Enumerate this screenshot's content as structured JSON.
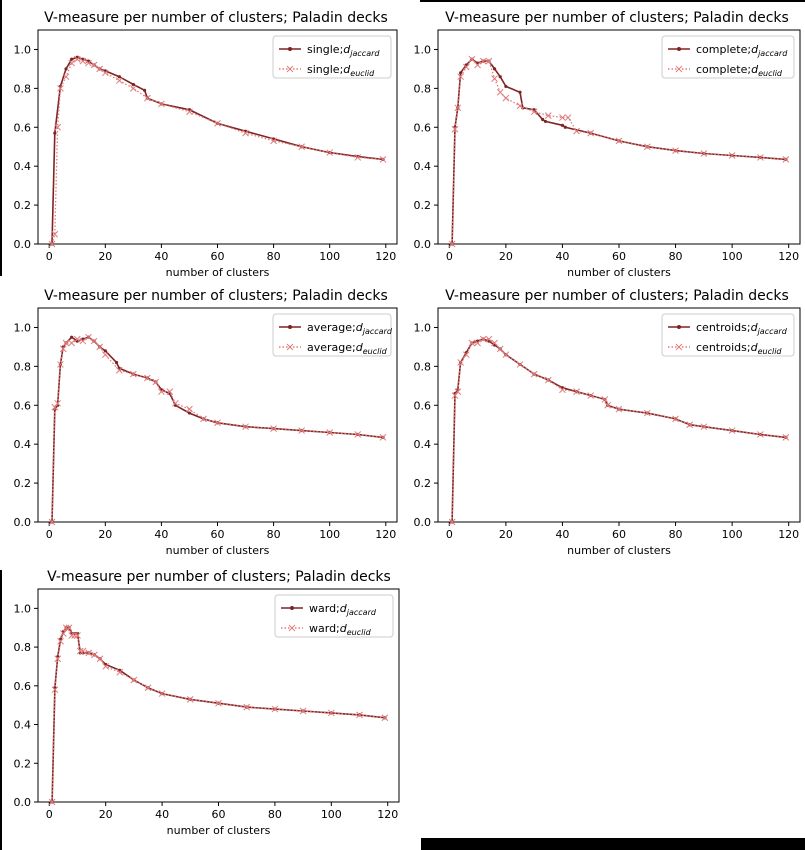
{
  "colors": {
    "jaccard": "#7f2424",
    "euclid": "#e07b7b",
    "axis": "#000000",
    "frame_bar": "#000000"
  },
  "chart_data": [
    {
      "type": "line",
      "title": "V-measure per number of clusters; Paladin decks",
      "xlabel": "number of clusters",
      "ylabel": "",
      "xlim": [
        -4,
        124
      ],
      "ylim": [
        0.0,
        1.1
      ],
      "xticks": [
        0,
        20,
        40,
        60,
        80,
        100,
        120
      ],
      "yticks": [
        0.0,
        0.2,
        0.4,
        0.6,
        0.8,
        1.0
      ],
      "legend_position": "top-right",
      "series": [
        {
          "name": "single",
          "sub": "jaccard",
          "style": "solid-dot",
          "x": [
            1,
            2,
            4,
            6,
            8,
            10,
            12,
            14,
            16,
            18,
            20,
            25,
            30,
            34,
            35,
            40,
            50,
            60,
            70,
            80,
            90,
            100,
            110,
            119
          ],
          "y": [
            0.0,
            0.57,
            0.81,
            0.9,
            0.95,
            0.96,
            0.95,
            0.94,
            0.92,
            0.9,
            0.89,
            0.86,
            0.82,
            0.79,
            0.75,
            0.72,
            0.69,
            0.62,
            0.58,
            0.54,
            0.5,
            0.47,
            0.45,
            0.435
          ]
        },
        {
          "name": "single",
          "sub": "euclid",
          "style": "dotted-x",
          "x": [
            1,
            2,
            3,
            4,
            6,
            8,
            10,
            12,
            14,
            16,
            18,
            20,
            25,
            30,
            35,
            40,
            50,
            60,
            70,
            80,
            90,
            100,
            110,
            119
          ],
          "y": [
            0.0,
            0.05,
            0.6,
            0.8,
            0.86,
            0.93,
            0.95,
            0.94,
            0.93,
            0.92,
            0.9,
            0.88,
            0.84,
            0.8,
            0.75,
            0.72,
            0.68,
            0.62,
            0.57,
            0.53,
            0.5,
            0.47,
            0.445,
            0.435
          ]
        }
      ]
    },
    {
      "type": "line",
      "title": "V-measure per number of clusters; Paladin decks",
      "xlabel": "number of clusters",
      "ylabel": "",
      "xlim": [
        -4,
        124
      ],
      "ylim": [
        0.0,
        1.1
      ],
      "xticks": [
        0,
        20,
        40,
        60,
        80,
        100,
        120
      ],
      "yticks": [
        0.0,
        0.2,
        0.4,
        0.6,
        0.8,
        1.0
      ],
      "legend_position": "top-right",
      "series": [
        {
          "name": "complete",
          "sub": "jaccard",
          "style": "solid-dot",
          "x": [
            1,
            2,
            3,
            4,
            6,
            8,
            10,
            12,
            14,
            16,
            18,
            20,
            25,
            26,
            30,
            33,
            34,
            40,
            41,
            50,
            60,
            70,
            80,
            90,
            100,
            110,
            119
          ],
          "y": [
            0.0,
            0.6,
            0.7,
            0.88,
            0.92,
            0.95,
            0.93,
            0.94,
            0.94,
            0.9,
            0.86,
            0.81,
            0.78,
            0.7,
            0.69,
            0.64,
            0.63,
            0.61,
            0.6,
            0.57,
            0.53,
            0.5,
            0.48,
            0.465,
            0.455,
            0.445,
            0.435
          ]
        },
        {
          "name": "complete",
          "sub": "euclid",
          "style": "dotted-x",
          "x": [
            1,
            2,
            3,
            4,
            6,
            8,
            10,
            12,
            14,
            16,
            18,
            20,
            25,
            30,
            35,
            40,
            42,
            45,
            50,
            60,
            70,
            80,
            90,
            100,
            110,
            119
          ],
          "y": [
            0.0,
            0.59,
            0.7,
            0.86,
            0.91,
            0.95,
            0.92,
            0.94,
            0.94,
            0.85,
            0.78,
            0.75,
            0.71,
            0.68,
            0.66,
            0.65,
            0.65,
            0.58,
            0.57,
            0.53,
            0.5,
            0.48,
            0.465,
            0.455,
            0.445,
            0.435
          ]
        }
      ]
    },
    {
      "type": "line",
      "title": "V-measure per number of clusters; Paladin decks",
      "xlabel": "number of clusters",
      "ylabel": "",
      "xlim": [
        -4,
        124
      ],
      "ylim": [
        0.0,
        1.1
      ],
      "xticks": [
        0,
        20,
        40,
        60,
        80,
        100,
        120
      ],
      "yticks": [
        0.0,
        0.2,
        0.4,
        0.6,
        0.8,
        1.0
      ],
      "legend_position": "top-right",
      "series": [
        {
          "name": "average",
          "sub": "jaccard",
          "style": "solid-dot",
          "x": [
            1,
            2,
            3,
            4,
            5,
            6,
            8,
            10,
            12,
            14,
            16,
            18,
            20,
            24,
            25,
            30,
            35,
            38,
            40,
            43,
            45,
            50,
            55,
            60,
            70,
            80,
            90,
            100,
            110,
            119
          ],
          "y": [
            0.0,
            0.58,
            0.6,
            0.81,
            0.9,
            0.92,
            0.95,
            0.93,
            0.94,
            0.95,
            0.93,
            0.9,
            0.88,
            0.82,
            0.79,
            0.76,
            0.74,
            0.72,
            0.68,
            0.66,
            0.6,
            0.56,
            0.53,
            0.51,
            0.49,
            0.48,
            0.47,
            0.46,
            0.45,
            0.435
          ]
        },
        {
          "name": "average",
          "sub": "euclid",
          "style": "dotted-x",
          "x": [
            1,
            2,
            3,
            4,
            5,
            6,
            8,
            10,
            12,
            14,
            16,
            18,
            20,
            25,
            30,
            35,
            38,
            40,
            43,
            45,
            50,
            55,
            60,
            70,
            80,
            90,
            100,
            110,
            119
          ],
          "y": [
            0.0,
            0.59,
            0.61,
            0.81,
            0.89,
            0.92,
            0.92,
            0.94,
            0.93,
            0.95,
            0.93,
            0.9,
            0.86,
            0.78,
            0.76,
            0.74,
            0.72,
            0.67,
            0.67,
            0.61,
            0.58,
            0.53,
            0.51,
            0.49,
            0.48,
            0.47,
            0.46,
            0.45,
            0.435
          ]
        }
      ]
    },
    {
      "type": "line",
      "title": "V-measure per number of clusters; Paladin decks",
      "xlabel": "number of clusters",
      "ylabel": "",
      "xlim": [
        -4,
        124
      ],
      "ylim": [
        0.0,
        1.1
      ],
      "xticks": [
        0,
        20,
        40,
        60,
        80,
        100,
        120
      ],
      "yticks": [
        0.0,
        0.2,
        0.4,
        0.6,
        0.8,
        1.0
      ],
      "legend_position": "top-right",
      "series": [
        {
          "name": "centroids",
          "sub": "jaccard",
          "style": "solid-dot",
          "x": [
            1,
            2,
            3,
            4,
            6,
            8,
            10,
            12,
            14,
            16,
            18,
            20,
            25,
            30,
            35,
            40,
            45,
            50,
            55,
            56,
            60,
            70,
            80,
            85,
            90,
            100,
            110,
            119
          ],
          "y": [
            0.0,
            0.66,
            0.68,
            0.82,
            0.87,
            0.92,
            0.93,
            0.94,
            0.93,
            0.91,
            0.89,
            0.86,
            0.81,
            0.76,
            0.73,
            0.69,
            0.67,
            0.65,
            0.63,
            0.6,
            0.58,
            0.56,
            0.53,
            0.5,
            0.49,
            0.47,
            0.45,
            0.435
          ]
        },
        {
          "name": "centroids",
          "sub": "euclid",
          "style": "dotted-x",
          "x": [
            1,
            2,
            3,
            4,
            6,
            8,
            10,
            12,
            14,
            16,
            18,
            20,
            25,
            30,
            35,
            40,
            45,
            50,
            55,
            56,
            60,
            70,
            80,
            85,
            90,
            100,
            110,
            119
          ],
          "y": [
            0.0,
            0.65,
            0.67,
            0.82,
            0.86,
            0.92,
            0.92,
            0.94,
            0.94,
            0.92,
            0.89,
            0.86,
            0.81,
            0.76,
            0.73,
            0.68,
            0.67,
            0.65,
            0.63,
            0.6,
            0.58,
            0.56,
            0.53,
            0.5,
            0.49,
            0.47,
            0.45,
            0.435
          ]
        }
      ]
    },
    {
      "type": "line",
      "title": "V-measure per number of clusters; Paladin decks",
      "xlabel": "number of clusters",
      "ylabel": "",
      "xlim": [
        -4,
        124
      ],
      "ylim": [
        0.0,
        1.1
      ],
      "xticks": [
        0,
        20,
        40,
        60,
        80,
        100,
        120
      ],
      "yticks": [
        0.0,
        0.2,
        0.4,
        0.6,
        0.8,
        1.0
      ],
      "legend_position": "top-right",
      "series": [
        {
          "name": "ward",
          "sub": "jaccard",
          "style": "solid-dot",
          "x": [
            1,
            2,
            3,
            4,
            5,
            6,
            7,
            8,
            9,
            10,
            11,
            12,
            14,
            16,
            18,
            20,
            25,
            30,
            35,
            40,
            50,
            60,
            70,
            80,
            90,
            100,
            110,
            119
          ],
          "y": [
            0.0,
            0.59,
            0.75,
            0.84,
            0.88,
            0.9,
            0.9,
            0.87,
            0.87,
            0.87,
            0.77,
            0.77,
            0.77,
            0.76,
            0.74,
            0.71,
            0.68,
            0.63,
            0.59,
            0.56,
            0.53,
            0.51,
            0.49,
            0.48,
            0.47,
            0.46,
            0.45,
            0.435
          ]
        },
        {
          "name": "ward",
          "sub": "euclid",
          "style": "dotted-x",
          "x": [
            1,
            2,
            3,
            4,
            5,
            6,
            7,
            8,
            9,
            10,
            11,
            12,
            14,
            16,
            18,
            20,
            25,
            30,
            35,
            40,
            50,
            60,
            70,
            80,
            90,
            100,
            110,
            119
          ],
          "y": [
            0.0,
            0.58,
            0.74,
            0.83,
            0.87,
            0.9,
            0.9,
            0.86,
            0.86,
            0.86,
            0.78,
            0.78,
            0.77,
            0.76,
            0.74,
            0.7,
            0.67,
            0.63,
            0.59,
            0.56,
            0.53,
            0.51,
            0.49,
            0.48,
            0.47,
            0.46,
            0.45,
            0.435
          ]
        }
      ]
    }
  ]
}
